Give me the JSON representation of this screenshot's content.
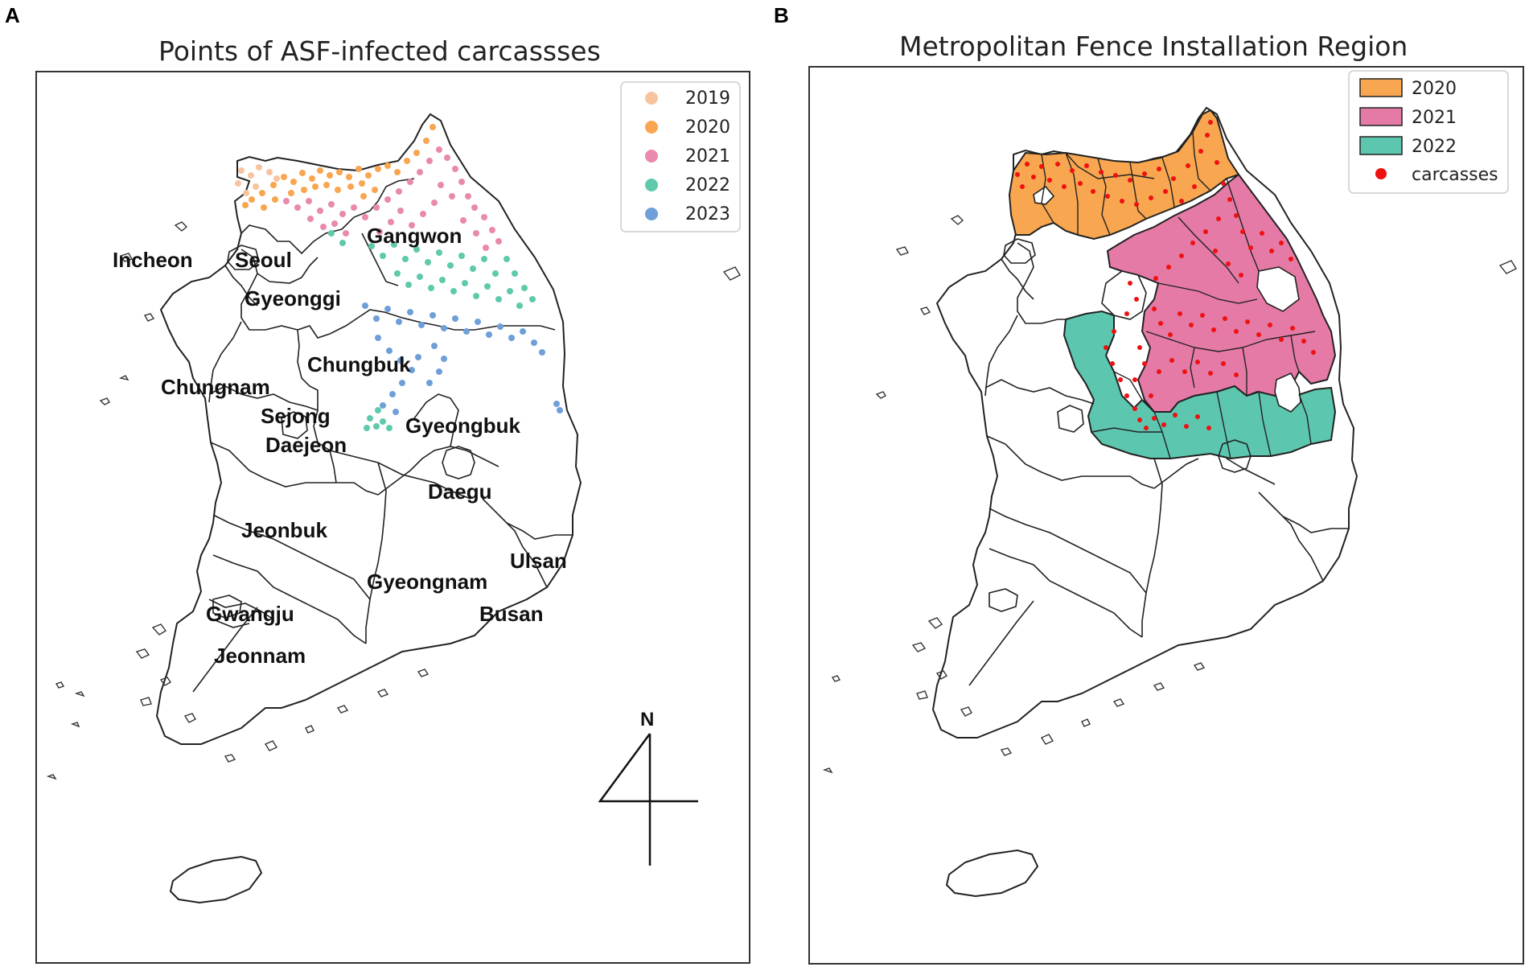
{
  "panel_a": {
    "letter": "A",
    "title": "Points of ASF-infected carcassses",
    "legend": [
      {
        "label": "2019",
        "color": "#f8c49f"
      },
      {
        "label": "2020",
        "color": "#f8a64f"
      },
      {
        "label": "2021",
        "color": "#e889ad"
      },
      {
        "label": "2022",
        "color": "#5fc9ac"
      },
      {
        "label": "2023",
        "color": "#6f9fd8"
      }
    ],
    "regions": {
      "incheon": "Incheon",
      "seoul": "Seoul",
      "gyeonggi": "Gyeonggi",
      "gangwon": "Gangwon",
      "chungbuk": "Chungbuk",
      "chungnam": "Chungnam",
      "sejong": "Sejong",
      "daejeon": "Daejeon",
      "gyeongbuk": "Gyeongbuk",
      "daegu": "Daegu",
      "jeonbuk": "Jeonbuk",
      "ulsan": "Ulsan",
      "gyeongnam": "Gyeongnam",
      "busan": "Busan",
      "gwangju": "Gwangju",
      "jeonnam": "Jeonnam"
    },
    "north_label": "N"
  },
  "panel_b": {
    "letter": "B",
    "title": "Metropolitan Fence Installation Region",
    "legend": [
      {
        "label": "2020",
        "color": "#f8a64f",
        "kind": "patch"
      },
      {
        "label": "2021",
        "color": "#e57aa6",
        "kind": "patch"
      },
      {
        "label": "2022",
        "color": "#5cc6ae",
        "kind": "patch"
      },
      {
        "label": "carcasses",
        "color": "#ee1111",
        "kind": "dot"
      }
    ]
  },
  "colors": {
    "outline": "#222222",
    "frame": "#333333"
  }
}
